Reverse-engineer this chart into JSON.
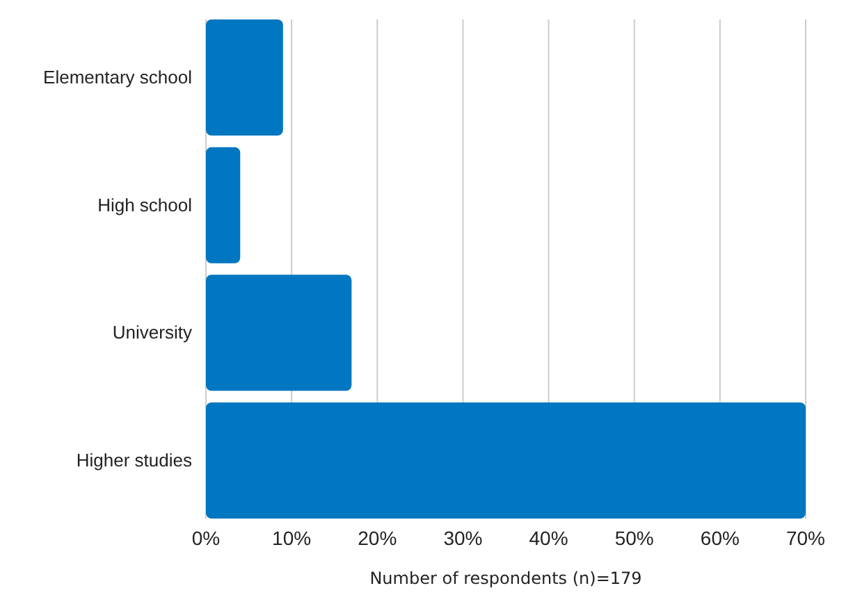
{
  "chart_data": {
    "type": "bar",
    "orientation": "horizontal",
    "categories": [
      "Elementary school",
      "High school",
      "University",
      "Higher studies"
    ],
    "values": [
      9,
      4,
      17,
      70
    ],
    "color": "#0077c0",
    "xlim": [
      0,
      70
    ],
    "xticks": [
      {
        "value": 0,
        "label": "0%"
      },
      {
        "value": 10,
        "label": "10%"
      },
      {
        "value": 20,
        "label": "20%"
      },
      {
        "value": 30,
        "label": "30%"
      },
      {
        "value": 40,
        "label": "40%"
      },
      {
        "value": 50,
        "label": "50%"
      },
      {
        "value": 60,
        "label": "60%"
      },
      {
        "value": 70,
        "label": "70%"
      }
    ],
    "xlabel": "Number of respondents (n)=179",
    "grid": "x"
  }
}
